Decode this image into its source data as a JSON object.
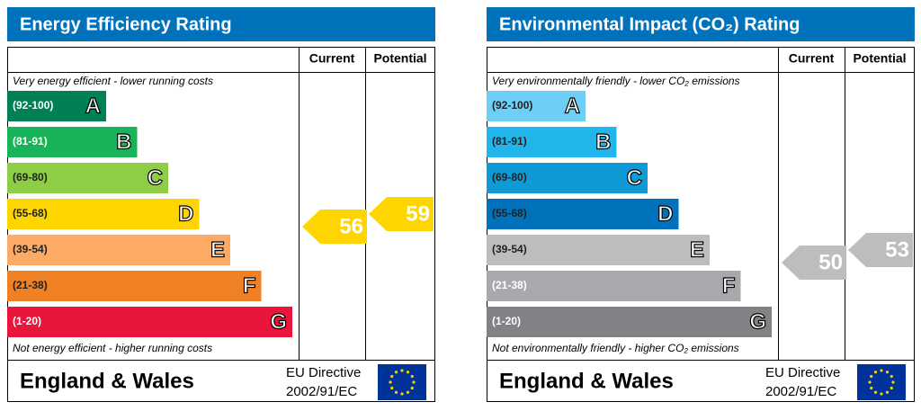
{
  "panels": [
    {
      "title": "Energy Efficiency Rating",
      "header_current": "Current",
      "header_potential": "Potential",
      "top_note": "Very energy efficient - lower running costs",
      "bottom_note": "Not energy efficient - higher running costs",
      "bands": [
        {
          "range": "(92-100)",
          "letter": "A",
          "color": "#008054",
          "label_color": "#ffffff"
        },
        {
          "range": "(81-91)",
          "letter": "B",
          "color": "#19b459",
          "label_color": "#ffffff"
        },
        {
          "range": "(69-80)",
          "letter": "C",
          "color": "#8dce46",
          "label_color": "#222222"
        },
        {
          "range": "(55-68)",
          "letter": "D",
          "color": "#ffd500",
          "label_color": "#222222"
        },
        {
          "range": "(39-54)",
          "letter": "E",
          "color": "#fcaa65",
          "label_color": "#222222"
        },
        {
          "range": "(21-38)",
          "letter": "F",
          "color": "#ef8023",
          "label_color": "#222222"
        },
        {
          "range": "(1-20)",
          "letter": "G",
          "color": "#e9153b",
          "label_color": "#ffffff"
        }
      ],
      "current": 56,
      "potential": 59,
      "region": "England & Wales",
      "directive_line1": "EU Directive",
      "directive_line2": "2002/91/EC"
    },
    {
      "title": "Environmental Impact (CO₂) Rating",
      "header_current": "Current",
      "header_potential": "Potential",
      "top_note": "Very environmentally friendly - lower CO₂ emissions",
      "bottom_note": "Not environmentally friendly - higher CO₂ emissions",
      "bands": [
        {
          "range": "(92-100)",
          "letter": "A",
          "color": "#6dcff6",
          "label_color": "#222222"
        },
        {
          "range": "(81-91)",
          "letter": "B",
          "color": "#22b5ec",
          "label_color": "#222222"
        },
        {
          "range": "(69-80)",
          "letter": "C",
          "color": "#0f9ad6",
          "label_color": "#222222"
        },
        {
          "range": "(55-68)",
          "letter": "D",
          "color": "#0072bc",
          "label_color": "#222222"
        },
        {
          "range": "(39-54)",
          "letter": "E",
          "color": "#bbbdbf",
          "label_color": "#222222"
        },
        {
          "range": "(21-38)",
          "letter": "F",
          "color": "#a7a9ac",
          "label_color": "#ffffff"
        },
        {
          "range": "(1-20)",
          "letter": "G",
          "color": "#808285",
          "label_color": "#ffffff"
        }
      ],
      "current": 50,
      "potential": 53,
      "region": "England & Wales",
      "directive_line1": "EU Directive",
      "directive_line2": "2002/91/EC"
    }
  ]
}
